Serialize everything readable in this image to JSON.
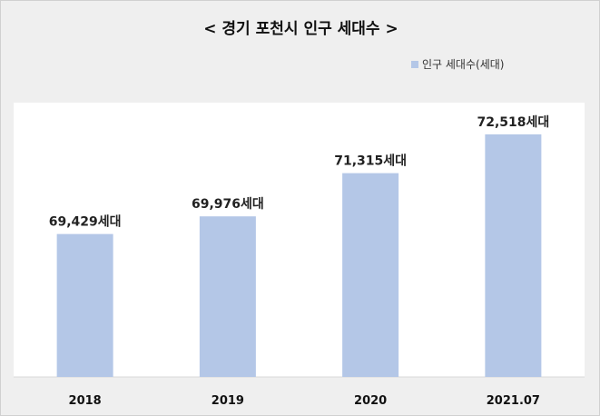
{
  "title": "< 경기 포천시 인구 세대수 >",
  "colors": {
    "bar": "#b4c7e7",
    "plot_bg": "#ffffff",
    "frame_bg": "#efefef"
  },
  "chart_data": {
    "type": "bar",
    "title": "< 경기 포천시 인구 세대수 >",
    "categories": [
      "2018",
      "2019",
      "2020",
      "2021.07"
    ],
    "series": [
      {
        "name": "인구 세대수(세대)",
        "values": [
          69429,
          69976,
          71315,
          72518
        ],
        "labels": [
          "69,429세대",
          "69,976세대",
          "71,315세대",
          "72,518세대"
        ]
      }
    ],
    "ylim": [
      65000,
      73500
    ],
    "grid": false,
    "legend": "top-right",
    "xlabel": "",
    "ylabel": ""
  }
}
